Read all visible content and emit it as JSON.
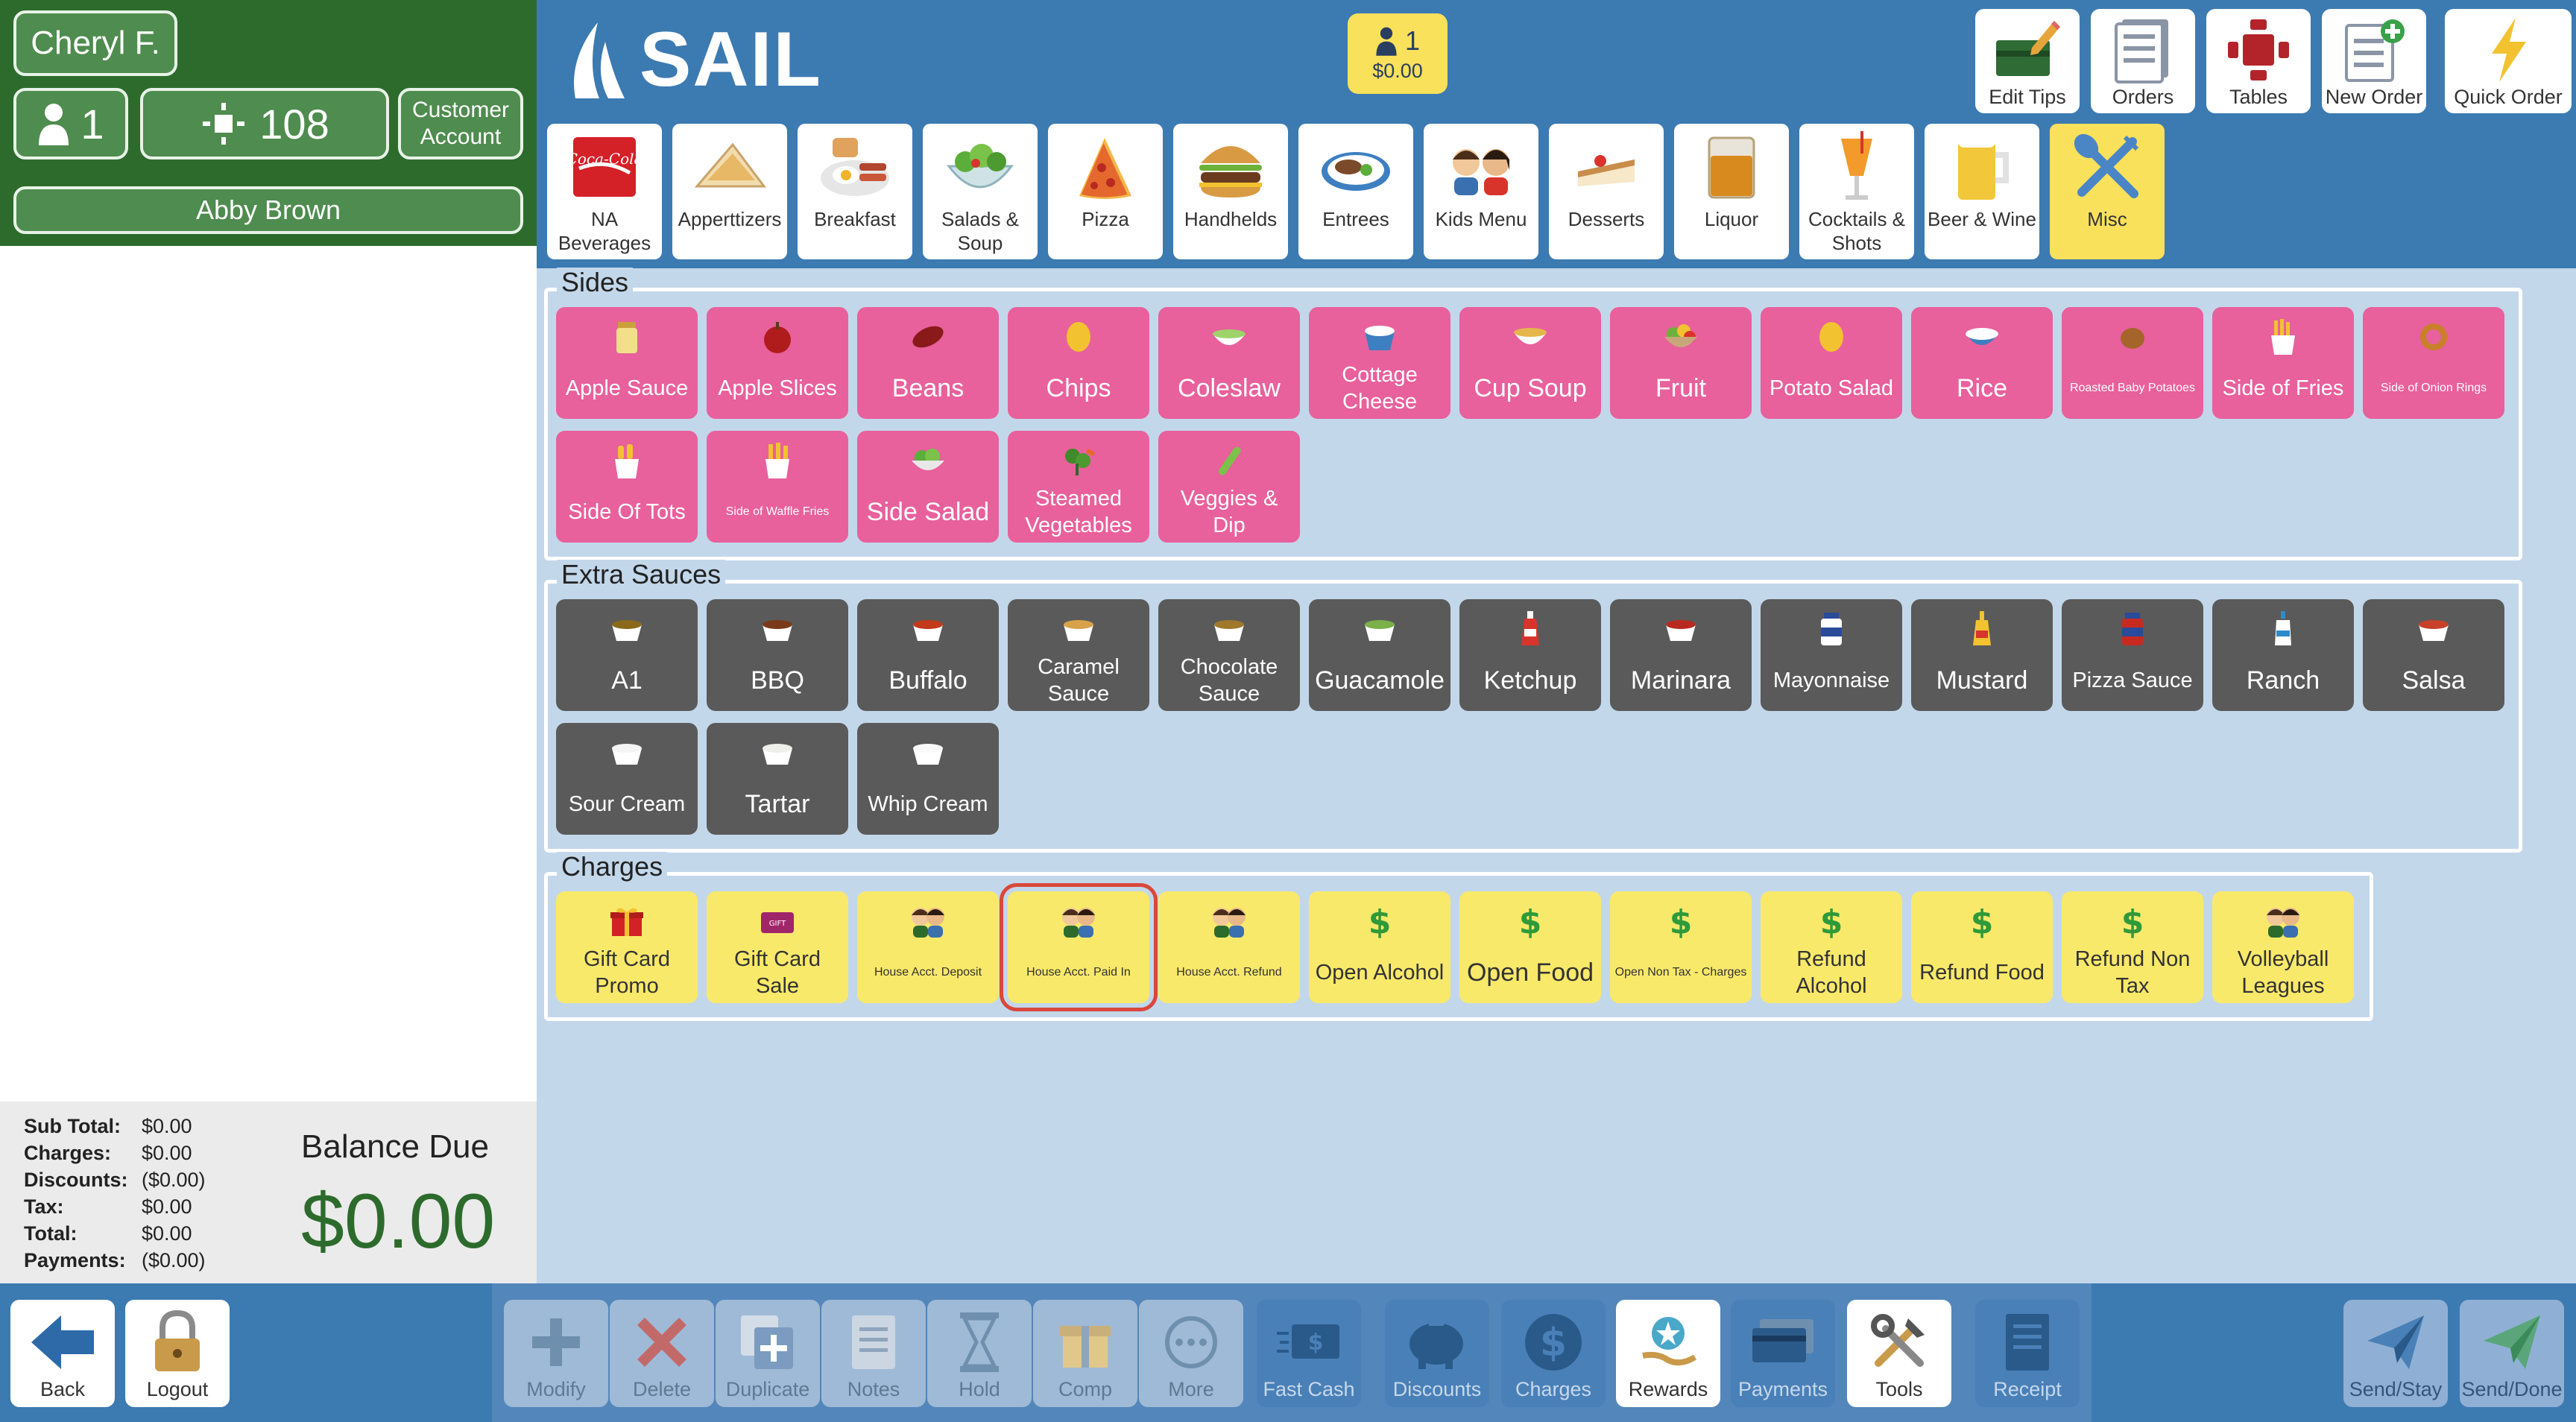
{
  "header": {
    "server_name": "Cheryl F.",
    "guest_count": "1",
    "table_number": "108",
    "customer_account_label": "Customer\nAccount",
    "customer_name": "Abby Brown"
  },
  "logo": {
    "text": "SAIL"
  },
  "order_badge": {
    "count": "1",
    "amount": "$0.00"
  },
  "top_buttons": [
    {
      "label": "Edit Tips",
      "icon": "edit-tips-icon"
    },
    {
      "label": "Orders",
      "icon": "orders-icon"
    },
    {
      "label": "Tables",
      "icon": "tables-icon"
    },
    {
      "label": "New Order",
      "icon": "new-order-icon"
    },
    {
      "label": "Quick Order",
      "icon": "lightning-icon"
    }
  ],
  "categories": [
    {
      "label": "NA Beverages"
    },
    {
      "label": "Apperttizers"
    },
    {
      "label": "Breakfast"
    },
    {
      "label": "Salads & Soup"
    },
    {
      "label": "Pizza"
    },
    {
      "label": "Handhelds"
    },
    {
      "label": "Entrees"
    },
    {
      "label": "Kids Menu"
    },
    {
      "label": "Desserts"
    },
    {
      "label": "Liquor"
    },
    {
      "label": "Cocktails & Shots"
    },
    {
      "label": "Beer & Wine"
    },
    {
      "label": "Misc",
      "active": true
    }
  ],
  "sides": {
    "title": "Sides",
    "items": [
      {
        "label": "Apple Sauce"
      },
      {
        "label": "Apple Slices"
      },
      {
        "label": "Beans"
      },
      {
        "label": "Chips"
      },
      {
        "label": "Coleslaw"
      },
      {
        "label": "Cottage Cheese"
      },
      {
        "label": "Cup Soup"
      },
      {
        "label": "Fruit"
      },
      {
        "label": "Potato Salad"
      },
      {
        "label": "Rice"
      },
      {
        "label": "Roasted Baby Potatoes"
      },
      {
        "label": "Side of Fries"
      },
      {
        "label": "Side of Onion Rings"
      },
      {
        "label": "Side Of Tots"
      },
      {
        "label": "Side of Waffle Fries"
      },
      {
        "label": "Side Salad"
      },
      {
        "label": "Steamed Vegetables"
      },
      {
        "label": "Veggies & Dip"
      }
    ]
  },
  "sauces": {
    "title": "Extra Sauces",
    "items": [
      {
        "label": "A1"
      },
      {
        "label": "BBQ"
      },
      {
        "label": "Buffalo"
      },
      {
        "label": "Caramel Sauce"
      },
      {
        "label": "Chocolate Sauce"
      },
      {
        "label": "Guacamole"
      },
      {
        "label": "Ketchup"
      },
      {
        "label": "Marinara"
      },
      {
        "label": "Mayonnaise"
      },
      {
        "label": "Mustard"
      },
      {
        "label": "Pizza Sauce"
      },
      {
        "label": "Ranch"
      },
      {
        "label": "Salsa"
      },
      {
        "label": "Sour Cream"
      },
      {
        "label": "Tartar"
      },
      {
        "label": "Whip Cream"
      }
    ]
  },
  "charges": {
    "title": "Charges",
    "items": [
      {
        "label": "Gift Card Promo"
      },
      {
        "label": "Gift Card Sale"
      },
      {
        "label": "House Acct. Deposit"
      },
      {
        "label": "House Acct. Paid In",
        "selected": true
      },
      {
        "label": "House Acct. Refund"
      },
      {
        "label": "Open Alcohol"
      },
      {
        "label": "Open Food"
      },
      {
        "label": "Open Non Tax - Charges"
      },
      {
        "label": "Refund Alcohol"
      },
      {
        "label": "Refund Food"
      },
      {
        "label": "Refund Non Tax"
      },
      {
        "label": "Volleyball Leagues"
      }
    ]
  },
  "totals": {
    "sub_total_label": "Sub Total:",
    "sub_total": "$0.00",
    "charges_label": "Charges:",
    "charges": "$0.00",
    "discounts_label": "Discounts:",
    "discounts": "($0.00)",
    "tax_label": "Tax:",
    "tax": "$0.00",
    "total_label": "Total:",
    "total": "$0.00",
    "payments_label": "Payments:",
    "payments": "($0.00)",
    "balance_label": "Balance Due",
    "balance": "$0.00"
  },
  "bottom_buttons": [
    {
      "label": "Back"
    },
    {
      "label": "Logout"
    },
    {
      "label": "Modify"
    },
    {
      "label": "Delete"
    },
    {
      "label": "Duplicate"
    },
    {
      "label": "Notes"
    },
    {
      "label": "Hold"
    },
    {
      "label": "Comp"
    },
    {
      "label": "More"
    },
    {
      "label": "Fast Cash"
    },
    {
      "label": "Discounts"
    },
    {
      "label": "Charges"
    },
    {
      "label": "Rewards"
    },
    {
      "label": "Payments"
    },
    {
      "label": "Tools"
    },
    {
      "label": "Receipt"
    },
    {
      "label": "Send/Stay"
    },
    {
      "label": "Send/Done"
    }
  ],
  "colors": {
    "header_green": "#2d6b2d",
    "top_blue": "#3c7ab2",
    "side_pink": "#e8609c",
    "sauce_gray": "#5a5a5a",
    "charge_yellow": "#f9e96a",
    "selection_red": "#d9483b"
  }
}
